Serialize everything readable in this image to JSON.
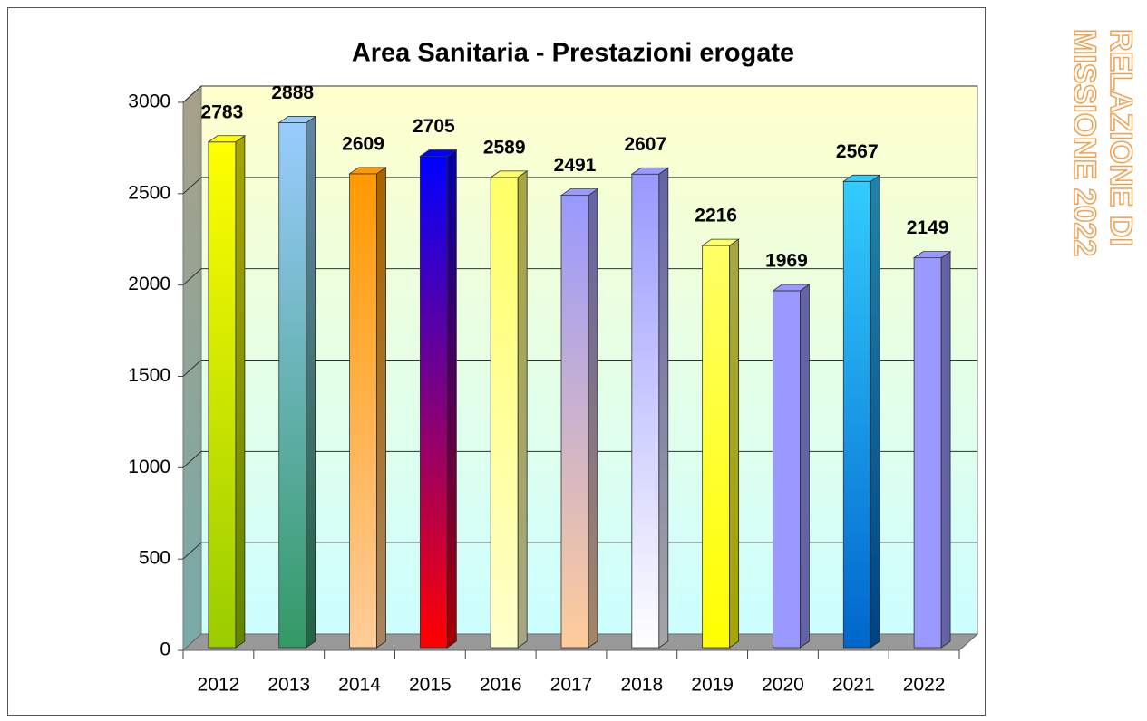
{
  "chart_data": {
    "type": "bar3d",
    "title": "Area Sanitaria - Prestazioni erogate",
    "categories": [
      "2012",
      "2013",
      "2014",
      "2015",
      "2016",
      "2017",
      "2018",
      "2019",
      "2020",
      "2021",
      "2022"
    ],
    "values": [
      2783,
      2888,
      2609,
      2705,
      2589,
      2491,
      2607,
      2216,
      1969,
      2567,
      2149
    ],
    "colors": [
      [
        "#ffff00",
        "#99cc00"
      ],
      [
        "#99ccff",
        "#339966"
      ],
      [
        "#ff9900",
        "#ffcc99"
      ],
      [
        "#0000ff",
        "#ff0000"
      ],
      [
        "#ffff66",
        "#ffffcc"
      ],
      [
        "#9999ff",
        "#ffcc99"
      ],
      [
        "#9999ff",
        "#ffffff"
      ],
      [
        "#ffff66",
        "#ffff00"
      ],
      [
        "#9999ff",
        "#9999ff"
      ],
      [
        "#33ccff",
        "#0066cc"
      ],
      [
        "#9999ff",
        "#9999ff"
      ]
    ],
    "ylim": [
      0,
      3000
    ],
    "yticks": [
      0,
      500,
      1000,
      1500,
      2000,
      2500,
      3000
    ],
    "grid": true
  },
  "side_text": [
    "RELAZIONE DI",
    "MISSIONE 2022"
  ]
}
